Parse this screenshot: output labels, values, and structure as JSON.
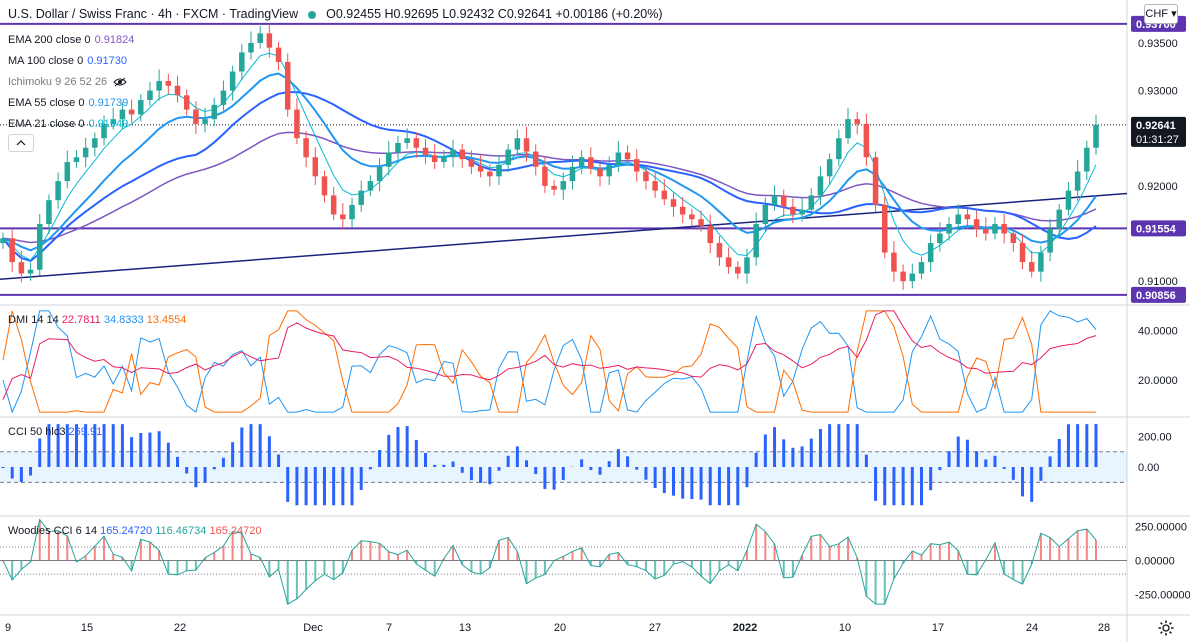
{
  "header": {
    "symbol": "U.S. Dollar / Swiss Franc · 4h · FXCM · TradingView",
    "ohlc": "O0.92455 H0.92695 L0.92432 C0.92641 +0.00186 (+0.20%)",
    "currency": "CHF"
  },
  "indicators": [
    {
      "label": "EMA 200 close 0",
      "value": "0.91824",
      "color": "#7e57c2"
    },
    {
      "label": "MA 100 close 0",
      "value": "0.91730",
      "color": "#2962ff"
    },
    {
      "label": "Ichimoku 9 26 52 26",
      "value": "",
      "color": "#787b86"
    },
    {
      "label": "EMA 55 close 0",
      "value": "0.91739",
      "color": "#2196f3"
    },
    {
      "label": "EMA 21 close 0",
      "value": "0.91949",
      "color": "#00bcd4"
    }
  ],
  "dmi": {
    "label": "DMI 14 14",
    "v1": "22.7811",
    "v2": "34.8333",
    "v3": "13.4554",
    "c1": "#e91e63",
    "c2": "#2196f3",
    "c3": "#ff6d00"
  },
  "cci": {
    "label": "CCI 50 hlc3",
    "value": "269.91",
    "color": "#2962ff"
  },
  "woodies": {
    "label": "Woodies CCI 6 14",
    "v1": "165.24720",
    "v2": "116.46734",
    "v3": "165.24720",
    "c1": "#2962ff",
    "c2": "#26a69a",
    "c3": "#ef5350"
  },
  "colors": {
    "up": "#26a69a",
    "down": "#ef5350",
    "hline": "#5e35b1",
    "trend": "#1a237e",
    "price_tag": "#131722"
  },
  "chart_data": {
    "type": "candlestick",
    "price_axis": {
      "ticks": [
        "0.93500",
        "0.93000",
        "0.92000",
        "0.91000"
      ],
      "ylim": [
        0.9075,
        0.9395
      ]
    },
    "price_tags": {
      "last": "0.92641",
      "countdown": "01:31:27",
      "levels": [
        "0.93700",
        "0.91554",
        "0.90856"
      ]
    },
    "horizontal_levels": [
      0.937,
      0.91554,
      0.90856
    ],
    "trendline": [
      [
        0,
        0.9102
      ],
      [
        1.0,
        0.9192
      ]
    ],
    "x_ticks": [
      "9",
      "15",
      "22",
      "Dec",
      "7",
      "13",
      "20",
      "27",
      "2022",
      "10",
      "17",
      "24",
      "28"
    ],
    "closes": [
      0.9145,
      0.912,
      0.9108,
      0.9112,
      0.916,
      0.9185,
      0.9205,
      0.9225,
      0.923,
      0.924,
      0.925,
      0.9265,
      0.927,
      0.928,
      0.9275,
      0.929,
      0.93,
      0.931,
      0.9305,
      0.9295,
      0.928,
      0.9265,
      0.927,
      0.9285,
      0.93,
      0.932,
      0.934,
      0.935,
      0.936,
      0.9345,
      0.933,
      0.928,
      0.925,
      0.923,
      0.921,
      0.919,
      0.917,
      0.9165,
      0.918,
      0.9195,
      0.9205,
      0.922,
      0.9235,
      0.9245,
      0.925,
      0.924,
      0.9232,
      0.9225,
      0.923,
      0.9238,
      0.9228,
      0.922,
      0.9215,
      0.921,
      0.9222,
      0.9238,
      0.925,
      0.9236,
      0.922,
      0.92,
      0.9196,
      0.9205,
      0.922,
      0.923,
      0.9218,
      0.921,
      0.9222,
      0.9235,
      0.9228,
      0.9215,
      0.9205,
      0.9195,
      0.9186,
      0.9178,
      0.917,
      0.9165,
      0.9158,
      0.914,
      0.9125,
      0.9115,
      0.9108,
      0.9125,
      0.916,
      0.918,
      0.919,
      0.9178,
      0.917,
      0.9175,
      0.919,
      0.921,
      0.9228,
      0.925,
      0.927,
      0.9265,
      0.923,
      0.918,
      0.913,
      0.911,
      0.91,
      0.9108,
      0.912,
      0.914,
      0.915,
      0.916,
      0.917,
      0.9165,
      0.9155,
      0.915,
      0.916,
      0.915,
      0.914,
      0.912,
      0.911,
      0.913,
      0.9155,
      0.9175,
      0.9195,
      0.9215,
      0.924,
      0.9264
    ],
    "dmi_axis": {
      "ticks": [
        "40.0000",
        "20.0000"
      ],
      "ylim": [
        5,
        50
      ]
    },
    "cci_axis": {
      "ticks": [
        "200.00",
        "0.00"
      ],
      "ylim": [
        -320,
        320
      ]
    },
    "woodies_axis": {
      "ticks": [
        "250.00000",
        "0.00000",
        "-250.00000"
      ],
      "ylim": [
        -400,
        320
      ]
    }
  }
}
